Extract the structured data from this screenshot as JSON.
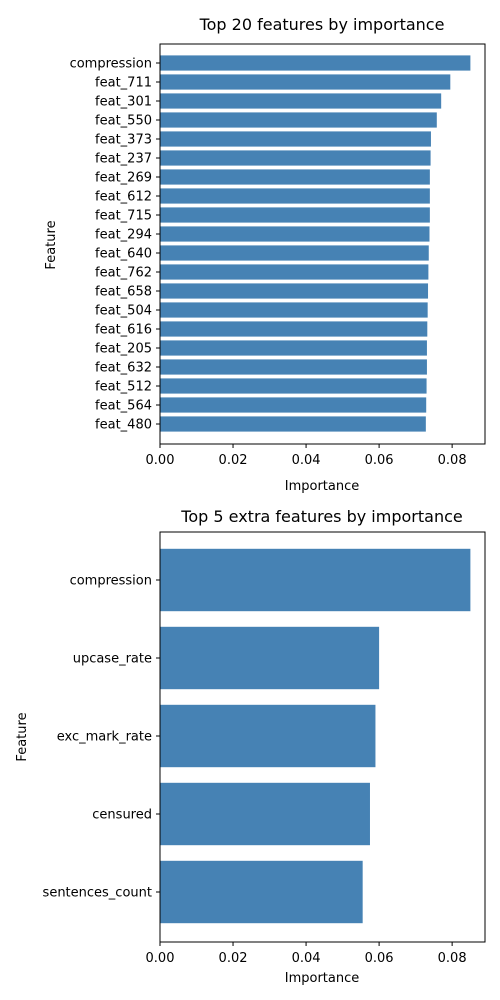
{
  "chart_data": [
    {
      "type": "bar",
      "orientation": "horizontal",
      "title": "Top 20 features by importance",
      "xlabel": "Importance",
      "ylabel": "Feature",
      "xlim": [
        0,
        0.089
      ],
      "xticks": [
        "0.00",
        "0.02",
        "0.04",
        "0.06",
        "0.08"
      ],
      "xtick_values": [
        0,
        0.02,
        0.04,
        0.06,
        0.08
      ],
      "bar_color": "#4682b4",
      "grid": false,
      "categories": [
        "compression",
        "feat_711",
        "feat_301",
        "feat_550",
        "feat_373",
        "feat_237",
        "feat_269",
        "feat_612",
        "feat_715",
        "feat_294",
        "feat_640",
        "feat_762",
        "feat_658",
        "feat_504",
        "feat_616",
        "feat_205",
        "feat_632",
        "feat_512",
        "feat_564",
        "feat_480"
      ],
      "values": [
        0.085,
        0.0795,
        0.077,
        0.0758,
        0.0742,
        0.0741,
        0.0739,
        0.0739,
        0.0739,
        0.0738,
        0.0736,
        0.0735,
        0.0734,
        0.0733,
        0.0732,
        0.0731,
        0.0731,
        0.073,
        0.0729,
        0.0728
      ]
    },
    {
      "type": "bar",
      "orientation": "horizontal",
      "title": "Top 5 extra features by importance",
      "xlabel": "Importance",
      "ylabel": "Feature",
      "xlim": [
        0,
        0.089
      ],
      "xticks": [
        "0.00",
        "0.02",
        "0.04",
        "0.06",
        "0.08"
      ],
      "xtick_values": [
        0,
        0.02,
        0.04,
        0.06,
        0.08
      ],
      "bar_color": "#4682b4",
      "grid": false,
      "categories": [
        "compression",
        "upcase_rate",
        "exc_mark_rate",
        "censured",
        "sentences_count"
      ],
      "values": [
        0.085,
        0.06,
        0.059,
        0.0575,
        0.0555
      ]
    }
  ]
}
